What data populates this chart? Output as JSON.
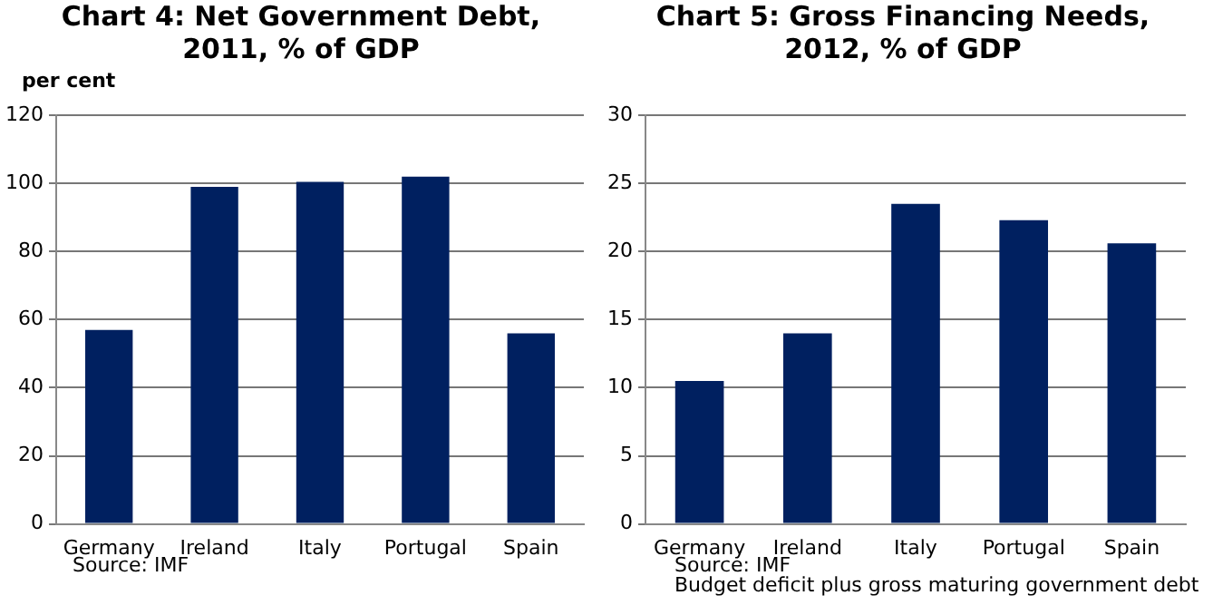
{
  "chart_data": [
    {
      "type": "bar",
      "title": "Chart 4:  Net Government Debt, 2011, % of GDP",
      "ylabel": "per cent",
      "categories": [
        "Germany",
        "Ireland",
        "Italy",
        "Portugal",
        "Spain"
      ],
      "values": [
        57,
        99,
        100.5,
        102,
        56
      ],
      "color": "#002060",
      "ylim": [
        0,
        120
      ],
      "yticks": [
        0,
        20,
        40,
        60,
        80,
        100,
        120
      ],
      "grid": "y",
      "legend": false,
      "annotations": [
        "Source: IMF"
      ]
    },
    {
      "type": "bar",
      "title": "Chart 5:  Gross Financing Needs, 2012, % of GDP",
      "categories": [
        "Germany",
        "Ireland",
        "Italy",
        "Portugal",
        "Spain"
      ],
      "values": [
        10.5,
        14,
        23.5,
        22.3,
        20.6
      ],
      "color": "#002060",
      "ylim": [
        0,
        30
      ],
      "yticks": [
        0,
        5,
        10,
        15,
        20,
        25,
        30
      ],
      "grid": "y",
      "legend": false,
      "annotations": [
        "Source: IMF",
        "Budget deficit plus gross maturing government debt"
      ]
    }
  ]
}
